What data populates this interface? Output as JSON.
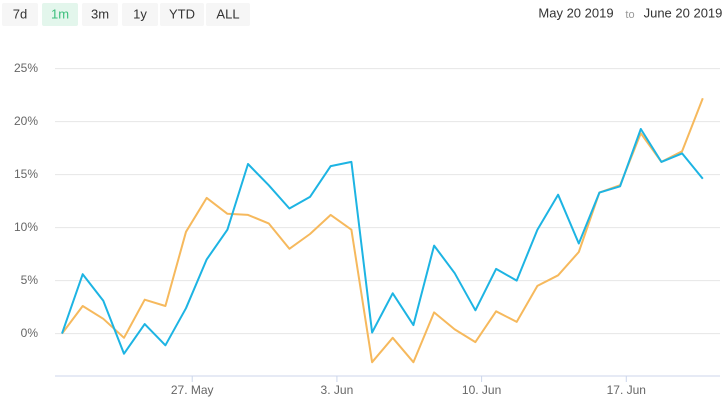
{
  "range_selector": {
    "buttons": [
      "7d",
      "1m",
      "3m",
      "1y",
      "YTD",
      "ALL"
    ],
    "selected": "1m",
    "from": "May 20 2019",
    "separator": "to",
    "to": "June 20 2019"
  },
  "chart_data": {
    "type": "line",
    "x": [
      "2019-05-20",
      "2019-05-21",
      "2019-05-22",
      "2019-05-23",
      "2019-05-24",
      "2019-05-25",
      "2019-05-26",
      "2019-05-27",
      "2019-05-28",
      "2019-05-29",
      "2019-05-30",
      "2019-05-31",
      "2019-06-01",
      "2019-06-02",
      "2019-06-03",
      "2019-06-04",
      "2019-06-05",
      "2019-06-06",
      "2019-06-07",
      "2019-06-08",
      "2019-06-09",
      "2019-06-10",
      "2019-06-11",
      "2019-06-12",
      "2019-06-13",
      "2019-06-14",
      "2019-06-15",
      "2019-06-16",
      "2019-06-17",
      "2019-06-18",
      "2019-06-19",
      "2019-06-20"
    ],
    "series": [
      {
        "color": "#1db4e3",
        "values": [
          0,
          5.6,
          3.1,
          -1.9,
          0.9,
          -1.1,
          2.4,
          7.0,
          9.8,
          16.0,
          14.0,
          11.8,
          12.9,
          15.8,
          16.2,
          0.1,
          3.8,
          0.8,
          8.3,
          5.7,
          2.2,
          6.1,
          5.0,
          9.8,
          13.1,
          8.5,
          13.3,
          13.9,
          19.3,
          16.2,
          17.0,
          14.6
        ]
      },
      {
        "color": "#f6b95d",
        "values": [
          0,
          2.6,
          1.4,
          -0.4,
          3.2,
          2.6,
          9.6,
          12.8,
          11.3,
          11.2,
          10.4,
          8.0,
          9.4,
          11.2,
          9.8,
          -2.7,
          -0.4,
          -2.7,
          2.0,
          0.4,
          -0.8,
          2.1,
          1.1,
          4.5,
          5.5,
          7.7,
          13.3,
          14.0,
          18.9,
          16.2,
          17.2,
          22.2
        ]
      }
    ],
    "ylim": [
      -4,
      26
    ],
    "yticks": [
      {
        "value": 0,
        "label": "0%"
      },
      {
        "value": 5,
        "label": "5%"
      },
      {
        "value": 10,
        "label": "10%"
      },
      {
        "value": 15,
        "label": "15%"
      },
      {
        "value": 20,
        "label": "20%"
      },
      {
        "value": 25,
        "label": "25%"
      }
    ],
    "xticks": [
      {
        "value": "2019-05-27",
        "label": "27. May"
      },
      {
        "value": "2019-06-03",
        "label": "3. Jun"
      },
      {
        "value": "2019-06-10",
        "label": "10. Jun"
      },
      {
        "value": "2019-06-17",
        "label": "17. Jun"
      }
    ],
    "grid": true
  }
}
